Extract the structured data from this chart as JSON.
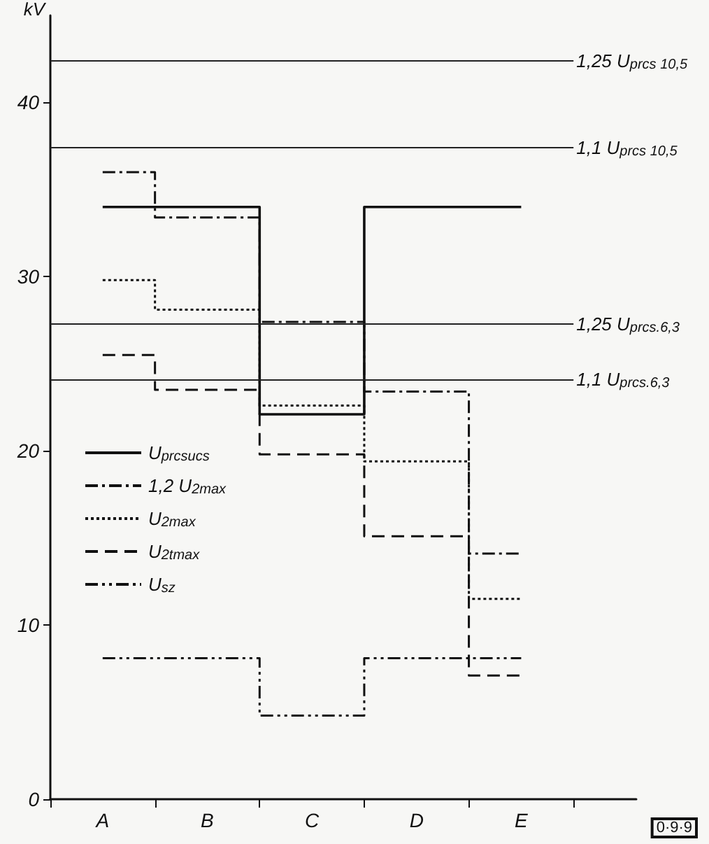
{
  "chart_data": {
    "type": "step",
    "ylabel": "kV",
    "categories": [
      "A",
      "B",
      "C",
      "D",
      "E"
    ],
    "series": [
      {
        "name": "U$_{prcsucs}$",
        "color": "#111111",
        "line_style": "solid",
        "values": [
          34.0,
          34.0,
          22.1,
          34.0,
          34.0
        ]
      },
      {
        "name": "1,2 U$_{2max}$",
        "color": "#111111",
        "line_style": "dashdot",
        "values": [
          36.0,
          33.4,
          27.4,
          23.4,
          14.1
        ]
      },
      {
        "name": "U$_{2max}$",
        "color": "#111111",
        "line_style": "dotted",
        "values": [
          29.8,
          28.1,
          22.6,
          19.4,
          11.5
        ]
      },
      {
        "name": "U$_{2tmax}$",
        "color": "#111111",
        "line_style": "dashed",
        "values": [
          25.5,
          23.5,
          19.8,
          15.1,
          7.1
        ]
      },
      {
        "name": "U$_{sz}$",
        "color": "#111111",
        "line_style": "dashdotdot",
        "values": [
          8.1,
          8.1,
          4.8,
          8.1,
          8.1
        ]
      }
    ],
    "ylim": [
      0,
      45
    ],
    "yticks": [
      0,
      10,
      20,
      30,
      40
    ],
    "ref_lines": [
      {
        "axis": "y",
        "value": 42.4,
        "label": "1,25 U$_{prcs 10,5}$"
      },
      {
        "axis": "y",
        "value": 37.4,
        "label": "1,1 U$_{prcs 10,5}$"
      },
      {
        "axis": "y",
        "value": 27.3,
        "label": "1,25 U$_{prcs.6,3}$"
      },
      {
        "axis": "y",
        "value": 24.1,
        "label": "1,1 U$_{prcs.6,3}$"
      }
    ],
    "annotations": [
      "0·9·9"
    ],
    "legend": "left",
    "grid": false,
    "marker": "none"
  }
}
